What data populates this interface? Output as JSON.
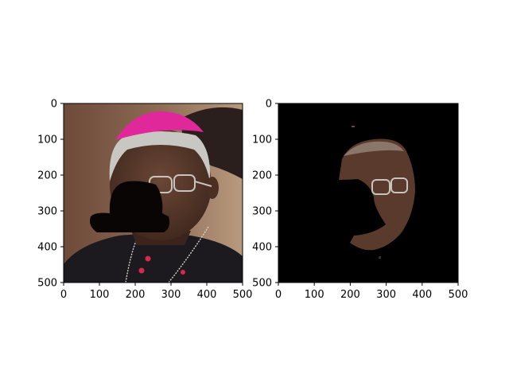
{
  "figure": {
    "background": "#ffffff",
    "panels": [
      {
        "id": "left",
        "image_content": "portrait-with-mask",
        "x_ticks": [
          0,
          100,
          200,
          300,
          400,
          500
        ],
        "y_ticks": [
          0,
          100,
          200,
          300,
          400,
          500
        ]
      },
      {
        "id": "right",
        "image_content": "segmented-face-on-black",
        "x_ticks": [
          0,
          100,
          200,
          300,
          400,
          500
        ],
        "y_ticks": [
          0,
          100,
          200,
          300,
          400,
          500
        ]
      }
    ]
  },
  "chart_data": [
    {
      "type": "image",
      "title": "",
      "xlabel": "",
      "ylabel": "",
      "xlim": [
        0,
        500
      ],
      "ylim": [
        500,
        0
      ],
      "x_tick_labels": [
        "0",
        "100",
        "200",
        "300",
        "400",
        "500"
      ],
      "y_tick_labels": [
        "0",
        "100",
        "200",
        "300",
        "400",
        "500"
      ],
      "grid": false,
      "legend": "none",
      "colors": {
        "mask": "#0a0505",
        "cap": "#e0289a",
        "cassock": "#1c1a1f",
        "skin": "#5a3a2c"
      }
    },
    {
      "type": "image",
      "title": "",
      "xlabel": "",
      "ylabel": "",
      "xlim": [
        0,
        500
      ],
      "ylim": [
        500,
        0
      ],
      "x_tick_labels": [
        "0",
        "100",
        "200",
        "300",
        "400",
        "500"
      ],
      "y_tick_labels": [
        "0",
        "100",
        "200",
        "300",
        "400",
        "500"
      ],
      "grid": false,
      "legend": "none",
      "colors": {
        "background": "#000000",
        "skin": "#5a3a2c"
      }
    }
  ]
}
